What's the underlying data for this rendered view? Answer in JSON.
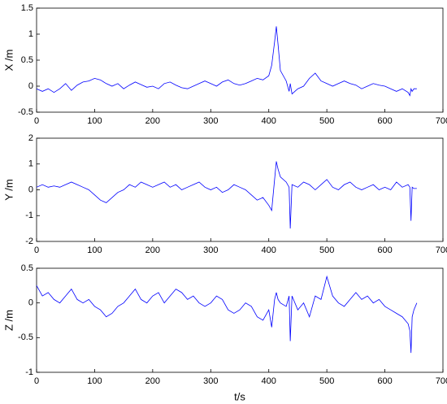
{
  "chart_data": [
    {
      "type": "line",
      "ylabel": "X /m",
      "color": "#0000ff",
      "x": [
        0,
        10,
        20,
        30,
        40,
        50,
        60,
        70,
        80,
        90,
        100,
        110,
        120,
        130,
        140,
        150,
        160,
        170,
        180,
        190,
        200,
        210,
        220,
        230,
        240,
        250,
        260,
        270,
        280,
        290,
        300,
        310,
        320,
        330,
        340,
        350,
        360,
        370,
        380,
        390,
        400,
        405,
        410,
        413,
        416,
        420,
        430,
        435,
        437,
        440,
        450,
        460,
        470,
        480,
        490,
        500,
        510,
        520,
        530,
        540,
        550,
        560,
        570,
        580,
        590,
        600,
        610,
        620,
        630,
        640,
        643,
        645,
        647,
        650,
        655
      ],
      "values": [
        -0.05,
        -0.1,
        -0.05,
        -0.12,
        -0.05,
        0.05,
        -0.08,
        0.02,
        0.08,
        0.1,
        0.15,
        0.12,
        0.05,
        0,
        0.05,
        -0.05,
        0.02,
        0.08,
        0.03,
        -0.02,
        0,
        -0.05,
        0.05,
        0.08,
        0.02,
        -0.03,
        -0.05,
        0,
        0.05,
        0.1,
        0.05,
        0,
        0.08,
        0.12,
        0.05,
        0.02,
        0.05,
        0.1,
        0.15,
        0.12,
        0.2,
        0.4,
        0.85,
        1.15,
        0.8,
        0.3,
        0.1,
        -0.1,
        0.05,
        -0.15,
        -0.05,
        0,
        0.15,
        0.25,
        0.1,
        0.05,
        0,
        0.05,
        0.1,
        0.05,
        0.02,
        -0.05,
        0,
        0.05,
        0.02,
        0,
        -0.05,
        -0.1,
        -0.05,
        -0.12,
        -0.18,
        -0.05,
        -0.1,
        -0.05,
        -0.05
      ],
      "xlim": [
        0,
        700
      ],
      "xticks": [
        0,
        100,
        200,
        300,
        400,
        500,
        600,
        700
      ],
      "ylim": [
        -0.5,
        1.5
      ],
      "yticks": [
        -0.5,
        0,
        0.5,
        1,
        1.5
      ]
    },
    {
      "type": "line",
      "ylabel": "Y /m",
      "color": "#0000ff",
      "x": [
        0,
        10,
        20,
        30,
        40,
        50,
        60,
        70,
        80,
        90,
        100,
        110,
        120,
        130,
        140,
        150,
        160,
        170,
        180,
        190,
        200,
        210,
        220,
        230,
        240,
        250,
        260,
        270,
        280,
        290,
        300,
        310,
        320,
        330,
        340,
        350,
        360,
        370,
        380,
        390,
        400,
        405,
        410,
        413,
        416,
        420,
        430,
        435,
        437,
        440,
        450,
        460,
        470,
        480,
        490,
        500,
        510,
        520,
        530,
        540,
        550,
        560,
        570,
        580,
        590,
        600,
        610,
        620,
        630,
        640,
        643,
        645,
        647,
        650,
        655
      ],
      "values": [
        0.1,
        0.2,
        0.1,
        0.15,
        0.1,
        0.2,
        0.3,
        0.2,
        0.1,
        0,
        -0.2,
        -0.4,
        -0.5,
        -0.3,
        -0.1,
        0,
        0.2,
        0.1,
        0.3,
        0.2,
        0.1,
        0.2,
        0.3,
        0.1,
        0.2,
        0,
        0.1,
        0.2,
        0.3,
        0.1,
        0,
        0.1,
        -0.1,
        0,
        0.2,
        0.1,
        0,
        -0.2,
        -0.4,
        -0.3,
        -0.6,
        -0.8,
        0.4,
        1.1,
        0.8,
        0.5,
        0.3,
        0.1,
        -1.5,
        0.2,
        0.1,
        0.3,
        0.2,
        0,
        0.2,
        0.4,
        0.1,
        0,
        0.2,
        0.3,
        0.1,
        0,
        0.1,
        0.2,
        0,
        0.1,
        0,
        0.3,
        0.1,
        0.2,
        0.1,
        -1.2,
        0.1,
        0.05,
        0.05
      ],
      "xlim": [
        0,
        700
      ],
      "xticks": [
        0,
        100,
        200,
        300,
        400,
        500,
        600,
        700
      ],
      "ylim": [
        -2,
        2
      ],
      "yticks": [
        -2,
        -1,
        0,
        1,
        2
      ]
    },
    {
      "type": "line",
      "ylabel": "Z /m",
      "xlabel": "t/s",
      "color": "#0000ff",
      "x": [
        0,
        10,
        20,
        30,
        40,
        50,
        60,
        70,
        80,
        90,
        100,
        110,
        120,
        130,
        140,
        150,
        160,
        170,
        180,
        190,
        200,
        210,
        220,
        230,
        240,
        250,
        260,
        270,
        280,
        290,
        300,
        310,
        320,
        330,
        340,
        350,
        360,
        370,
        380,
        390,
        400,
        405,
        410,
        413,
        416,
        420,
        430,
        435,
        437,
        440,
        450,
        460,
        470,
        480,
        490,
        500,
        510,
        520,
        530,
        540,
        550,
        560,
        570,
        580,
        590,
        600,
        610,
        620,
        630,
        640,
        643,
        645,
        647,
        650,
        655
      ],
      "values": [
        0.25,
        0.1,
        0.15,
        0.05,
        0,
        0.1,
        0.2,
        0.05,
        0,
        0.05,
        -0.05,
        -0.1,
        -0.2,
        -0.15,
        -0.05,
        0,
        0.1,
        0.2,
        0.05,
        0,
        0.1,
        0.15,
        0,
        0.1,
        0.2,
        0.15,
        0.05,
        0.1,
        0,
        -0.05,
        0,
        0.1,
        0.05,
        -0.1,
        -0.15,
        -0.1,
        0,
        -0.05,
        -0.2,
        -0.25,
        -0.1,
        -0.35,
        0.05,
        0.15,
        0.05,
        0,
        -0.05,
        0.1,
        -0.55,
        0.1,
        -0.1,
        0,
        -0.2,
        0.1,
        0.05,
        0.38,
        0.1,
        0,
        -0.05,
        0.05,
        0.15,
        0.05,
        0.1,
        0,
        0.05,
        -0.05,
        -0.1,
        -0.15,
        -0.2,
        -0.3,
        -0.4,
        -0.72,
        -0.2,
        -0.1,
        0
      ],
      "xlim": [
        0,
        700
      ],
      "xticks": [
        0,
        100,
        200,
        300,
        400,
        500,
        600,
        700
      ],
      "ylim": [
        -1,
        0.5
      ],
      "yticks": [
        -1,
        -0.5,
        0,
        0.5
      ]
    }
  ]
}
